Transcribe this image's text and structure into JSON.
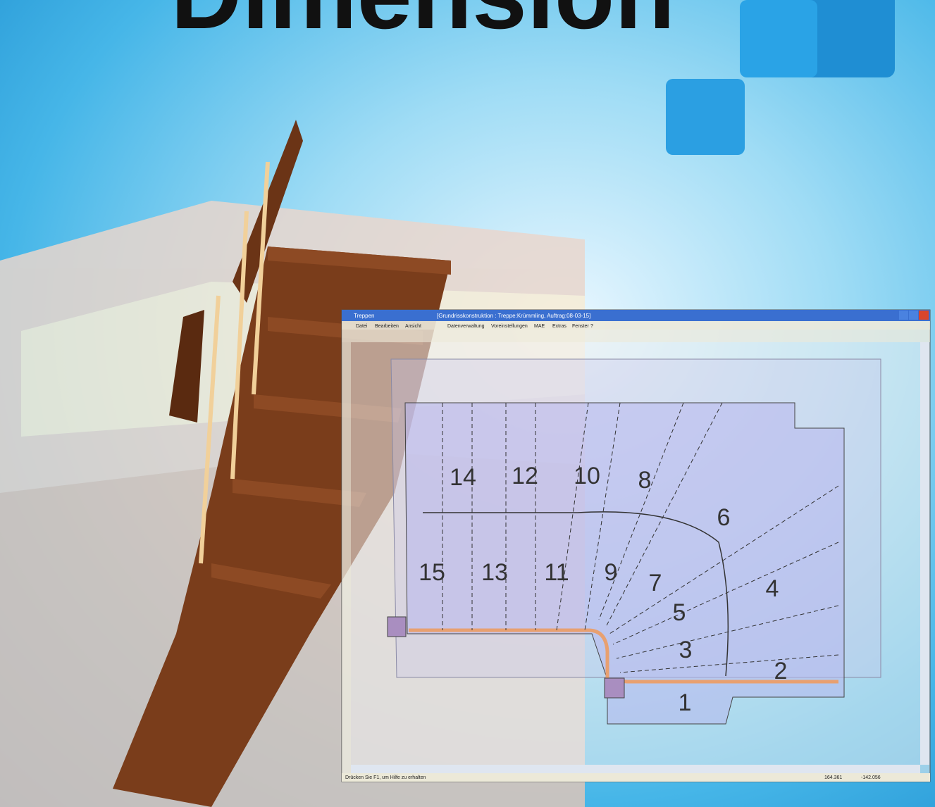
{
  "headline": "Dimension",
  "window": {
    "app_title": "Treppen",
    "document_title": "[Grundrisskonstruktion : Treppe:Krümmling, Auftrag:08-03-15]",
    "menu": [
      "Datei",
      "Bearbeiten",
      "Ansicht",
      "Datenverwaltung",
      "Voreinstellungen",
      "MAE",
      "Extras",
      "Fenster",
      "?"
    ],
    "status": {
      "hint": "Drücken Sie F1, um Hilfe zu erhalten",
      "x": "164.361",
      "y": "-142.056"
    }
  },
  "plan": {
    "steps": [
      "1",
      "2",
      "3",
      "4",
      "5",
      "6",
      "7",
      "8",
      "9",
      "10",
      "11",
      "12",
      "13",
      "14",
      "15"
    ]
  }
}
